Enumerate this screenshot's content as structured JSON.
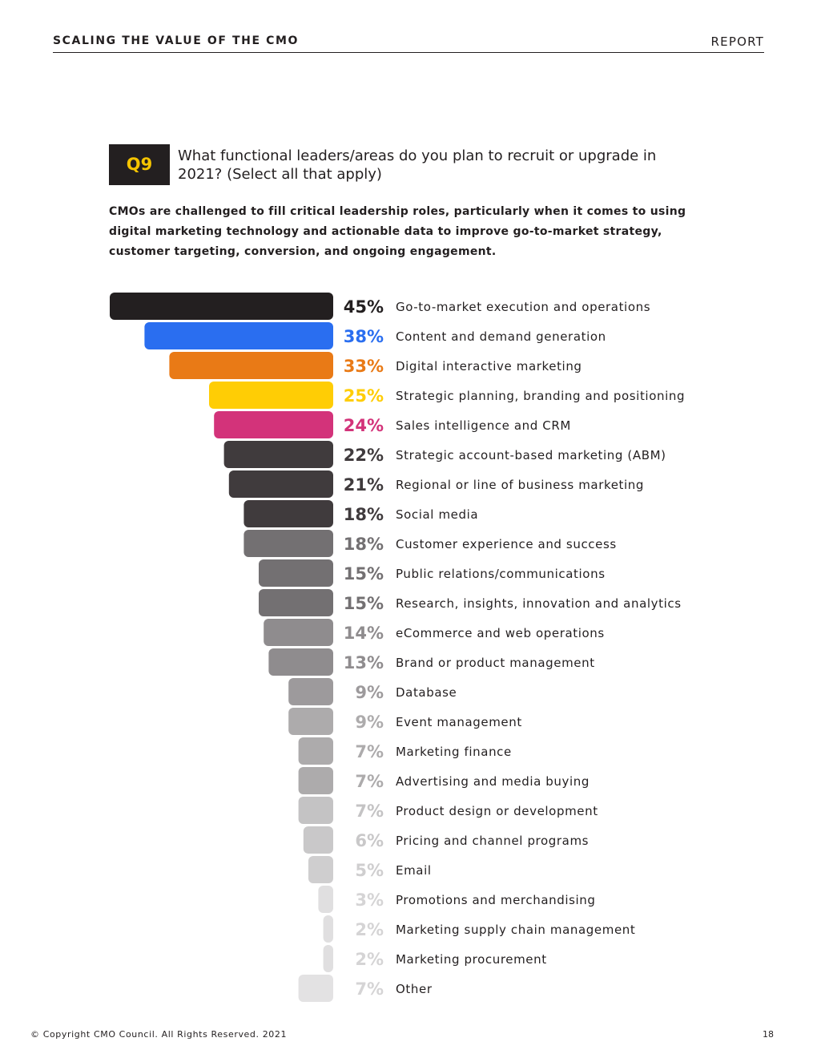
{
  "header": {
    "title": "SCALING THE VALUE OF THE CMO",
    "section": "REPORT"
  },
  "question": {
    "number": "Q9",
    "text": "What functional leaders/areas do you plan to recruit or upgrade in 2021? (Select all that apply)"
  },
  "intro": "CMOs are challenged to fill critical leadership roles, particularly when it comes to using digital marketing technology and actionable data to improve go-to-market strategy, customer targeting, conversion, and ongoing engagement.",
  "footer": {
    "copyright": "© Copyright CMO Council. All Rights Reserved. 2021",
    "page_number": "18"
  },
  "chart_data": {
    "type": "bar",
    "orientation": "horizontal",
    "value_suffix": "%",
    "categories": [
      "Go-to-market execution and operations",
      "Content and demand generation",
      "Digital interactive marketing",
      "Strategic planning, branding and positioning",
      "Sales intelligence and CRM",
      "Strategic account-based marketing (ABM)",
      "Regional or line of business marketing",
      "Social media",
      "Customer experience and success",
      "Public relations/communications",
      "Research, insights, innovation and analytics",
      "eCommerce and web operations",
      "Brand or product management",
      "Database",
      "Event management",
      "Marketing finance",
      "Advertising and media buying",
      "Product design or development",
      "Pricing and channel programs",
      "Email",
      "Promotions and merchandising",
      "Marketing supply chain management",
      "Marketing procurement",
      "Other"
    ],
    "values": [
      45,
      38,
      33,
      25,
      24,
      22,
      21,
      18,
      18,
      15,
      15,
      14,
      13,
      9,
      9,
      7,
      7,
      7,
      6,
      5,
      3,
      2,
      2,
      7
    ],
    "bar_colors": [
      "#231f20",
      "#2a6ef0",
      "#e97a16",
      "#ffcd05",
      "#d3337a",
      "#403b3d",
      "#403b3d",
      "#403b3d",
      "#737072",
      "#737072",
      "#737072",
      "#8f8c8e",
      "#8f8c8e",
      "#9d9a9c",
      "#adabac",
      "#adabac",
      "#adabac",
      "#c4c3c4",
      "#c9c8c9",
      "#cfcecf",
      "#e0dfe0",
      "#e0dfe0",
      "#e0dfe0",
      "#e3e2e3"
    ],
    "value_colors": [
      "#231f20",
      "#2a6ef0",
      "#e97a16",
      "#ffcd05",
      "#d3337a",
      "#403b3d",
      "#403b3d",
      "#403b3d",
      "#737072",
      "#737072",
      "#737072",
      "#8f8c8e",
      "#8f8c8e",
      "#9d9a9c",
      "#adabac",
      "#adabac",
      "#adabac",
      "#c4c3c4",
      "#c9c8c9",
      "#cfcecf",
      "#d5d4d5",
      "#d5d4d5",
      "#d5d4d5",
      "#d5d4d5"
    ],
    "bars_aligned": "right",
    "sorted": "descending (Other last)"
  }
}
